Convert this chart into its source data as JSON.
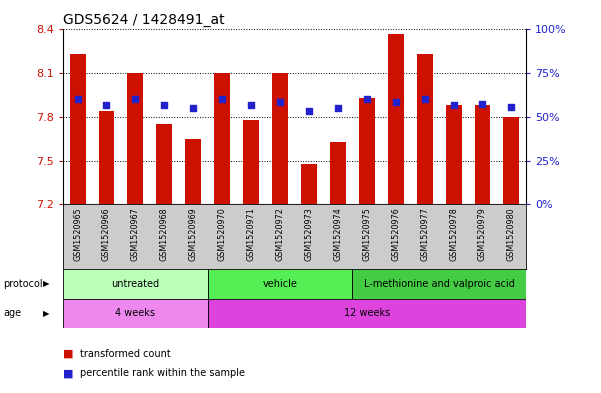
{
  "title": "GDS5624 / 1428491_at",
  "samples": [
    "GSM1520965",
    "GSM1520966",
    "GSM1520967",
    "GSM1520968",
    "GSM1520969",
    "GSM1520970",
    "GSM1520971",
    "GSM1520972",
    "GSM1520973",
    "GSM1520974",
    "GSM1520975",
    "GSM1520976",
    "GSM1520977",
    "GSM1520978",
    "GSM1520979",
    "GSM1520980"
  ],
  "bar_values": [
    8.23,
    7.84,
    8.1,
    7.75,
    7.65,
    8.1,
    7.78,
    8.1,
    7.48,
    7.63,
    7.93,
    8.37,
    8.23,
    7.88,
    7.88,
    7.8
  ],
  "dot_values": [
    7.92,
    7.88,
    7.92,
    7.88,
    7.86,
    7.92,
    7.88,
    7.9,
    7.84,
    7.86,
    7.92,
    7.9,
    7.92,
    7.88,
    7.89,
    7.87
  ],
  "ymin": 7.2,
  "ymax": 8.4,
  "yticks": [
    7.2,
    7.5,
    7.8,
    8.1,
    8.4
  ],
  "right_ytick_positions": [
    0,
    25,
    50,
    75,
    100
  ],
  "right_ytick_labels": [
    "0%",
    "25%",
    "50%",
    "75%",
    "100%"
  ],
  "bar_color": "#cc1100",
  "dot_color": "#2222cc",
  "protocol_groups": [
    {
      "label": "untreated",
      "start": 0,
      "end": 5,
      "color": "#bbffbb"
    },
    {
      "label": "vehicle",
      "start": 5,
      "end": 10,
      "color": "#55ee55"
    },
    {
      "label": "L-methionine and valproic acid",
      "start": 10,
      "end": 16,
      "color": "#44cc44"
    }
  ],
  "age_groups": [
    {
      "label": "4 weeks",
      "start": 0,
      "end": 5,
      "color": "#ee88ee"
    },
    {
      "label": "12 weeks",
      "start": 5,
      "end": 16,
      "color": "#dd44dd"
    }
  ],
  "protocol_label": "protocol",
  "age_label": "age",
  "legend_bar_label": "transformed count",
  "legend_dot_label": "percentile rank within the sample",
  "tick_label_color_left": "#cc1100",
  "tick_label_color_right": "#2222cc"
}
